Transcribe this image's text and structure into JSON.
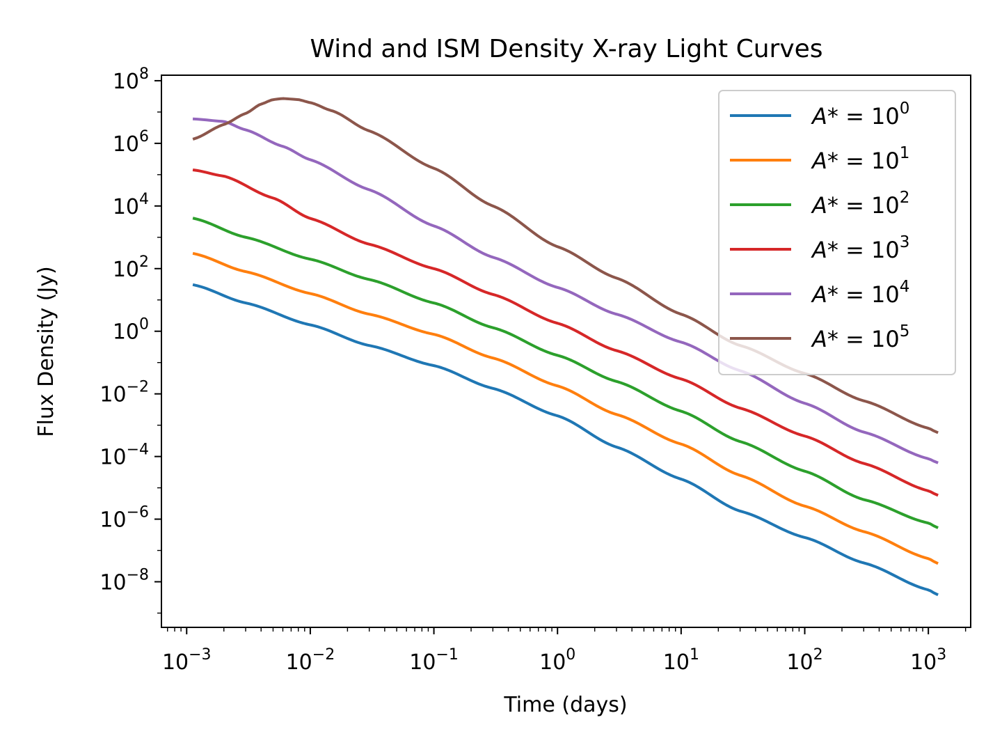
{
  "chart_data": {
    "type": "line",
    "title": "Wind and ISM Density X-ray Light Curves",
    "xlabel": "Time (days)",
    "ylabel": "Flux Density (Jy)",
    "xscale": "log",
    "yscale": "log",
    "xlim": [
      0.000625,
      2200
    ],
    "ylim": [
      3.5e-10,
      150000000.0
    ],
    "xticks": {
      "values": [
        0.001,
        0.01,
        0.1,
        1,
        10,
        100,
        1000
      ],
      "labels": [
        {
          "base": "10",
          "exp": "−3"
        },
        {
          "base": "10",
          "exp": "−2"
        },
        {
          "base": "10",
          "exp": "−1"
        },
        {
          "base": "10",
          "exp": "0"
        },
        {
          "base": "10",
          "exp": "1"
        },
        {
          "base": "10",
          "exp": "2"
        },
        {
          "base": "10",
          "exp": "3"
        }
      ]
    },
    "yticks": {
      "values": [
        1e-08,
        1e-06,
        0.0001,
        0.01,
        1,
        100.0,
        10000.0,
        1000000.0,
        100000000.0
      ],
      "labels": [
        {
          "base": "10",
          "exp": "−8"
        },
        {
          "base": "10",
          "exp": "−6"
        },
        {
          "base": "10",
          "exp": "−4"
        },
        {
          "base": "10",
          "exp": "−2"
        },
        {
          "base": "10",
          "exp": "0"
        },
        {
          "base": "10",
          "exp": "2"
        },
        {
          "base": "10",
          "exp": "4"
        },
        {
          "base": "10",
          "exp": "6"
        },
        {
          "base": "10",
          "exp": "8"
        }
      ]
    },
    "grid": false,
    "legend": {
      "placement": "upper right"
    },
    "series": [
      {
        "name": "A* = 10^0",
        "legend_label": {
          "prefix": "A",
          "mid": "* = 10",
          "exp": "0"
        },
        "color": "#1f77b4",
        "points": [
          [
            0.00115,
            30
          ],
          [
            0.003,
            8
          ],
          [
            0.01,
            1.6
          ],
          [
            0.03,
            0.35
          ],
          [
            0.1,
            0.08
          ],
          [
            0.3,
            0.015
          ],
          [
            1,
            0.002
          ],
          [
            3,
            0.0002
          ],
          [
            10,
            1.9e-05
          ],
          [
            30,
            1.8e-06
          ],
          [
            100,
            2.6e-07
          ],
          [
            300,
            4e-08
          ],
          [
            1000,
            5.5e-09
          ],
          [
            1170,
            4e-09
          ]
        ]
      },
      {
        "name": "A* = 10^1",
        "legend_label": {
          "prefix": "A",
          "mid": "* = 10",
          "exp": "1"
        },
        "color": "#ff7f0e",
        "points": [
          [
            0.00115,
            300
          ],
          [
            0.003,
            80
          ],
          [
            0.01,
            16
          ],
          [
            0.03,
            3.5
          ],
          [
            0.1,
            0.8
          ],
          [
            0.3,
            0.14
          ],
          [
            1,
            0.018
          ],
          [
            3,
            0.0022
          ],
          [
            10,
            0.00025
          ],
          [
            30,
            2.5e-05
          ],
          [
            100,
            2.6e-06
          ],
          [
            300,
            4e-07
          ],
          [
            1000,
            5.5e-08
          ],
          [
            1170,
            4e-08
          ]
        ]
      },
      {
        "name": "A* = 10^2",
        "legend_label": {
          "prefix": "A",
          "mid": "* = 10",
          "exp": "2"
        },
        "color": "#2ca02c",
        "points": [
          [
            0.00115,
            4000
          ],
          [
            0.003,
            1000
          ],
          [
            0.01,
            200
          ],
          [
            0.03,
            45
          ],
          [
            0.1,
            8
          ],
          [
            0.3,
            1.3
          ],
          [
            1,
            0.17
          ],
          [
            3,
            0.025
          ],
          [
            10,
            0.0028
          ],
          [
            30,
            0.0003
          ],
          [
            100,
            3.4e-05
          ],
          [
            300,
            4.2e-06
          ],
          [
            1000,
            7.5e-07
          ],
          [
            1170,
            5.5e-07
          ]
        ]
      },
      {
        "name": "A* = 10^3",
        "legend_label": {
          "prefix": "A",
          "mid": "* = 10",
          "exp": "3"
        },
        "color": "#d62728",
        "points": [
          [
            0.00115,
            140000
          ],
          [
            0.002,
            90000
          ],
          [
            0.005,
            18000
          ],
          [
            0.01,
            4000
          ],
          [
            0.03,
            600
          ],
          [
            0.1,
            100
          ],
          [
            0.3,
            15
          ],
          [
            1,
            1.8
          ],
          [
            3,
            0.24
          ],
          [
            10,
            0.03
          ],
          [
            30,
            0.0035
          ],
          [
            100,
            0.00045
          ],
          [
            300,
            6e-05
          ],
          [
            1000,
            8e-06
          ],
          [
            1170,
            6e-06
          ]
        ]
      },
      {
        "name": "A* = 10^4",
        "legend_label": {
          "prefix": "A",
          "mid": "* = 10",
          "exp": "4"
        },
        "color": "#9467bd",
        "points": [
          [
            0.00115,
            6000000
          ],
          [
            0.002,
            5000000
          ],
          [
            0.003,
            2700000
          ],
          [
            0.006,
            800000
          ],
          [
            0.01,
            300000
          ],
          [
            0.03,
            33000
          ],
          [
            0.1,
            2300
          ],
          [
            0.3,
            230
          ],
          [
            1,
            25
          ],
          [
            3,
            3.5
          ],
          [
            10,
            0.45
          ],
          [
            30,
            0.055
          ],
          [
            100,
            0.005
          ],
          [
            300,
            0.0006
          ],
          [
            1000,
            8.5e-05
          ],
          [
            1170,
            6.5e-05
          ]
        ]
      },
      {
        "name": "A* = 10^5",
        "legend_label": {
          "prefix": "A",
          "mid": "* = 10",
          "exp": "5"
        },
        "color": "#8c564b",
        "points": [
          [
            0.00115,
            1400000
          ],
          [
            0.002,
            4000000
          ],
          [
            0.003,
            9000000
          ],
          [
            0.004,
            18000000
          ],
          [
            0.005,
            25000000
          ],
          [
            0.006,
            27000000
          ],
          [
            0.008,
            25000000
          ],
          [
            0.01,
            20000000
          ],
          [
            0.015,
            11000000
          ],
          [
            0.03,
            2500000
          ],
          [
            0.1,
            160000
          ],
          [
            0.3,
            10000
          ],
          [
            1,
            500
          ],
          [
            3,
            50
          ],
          [
            10,
            3.5
          ],
          [
            30,
            0.35
          ],
          [
            100,
            0.045
          ],
          [
            300,
            0.006
          ],
          [
            1000,
            0.0008
          ],
          [
            1170,
            0.0006
          ]
        ]
      }
    ]
  }
}
